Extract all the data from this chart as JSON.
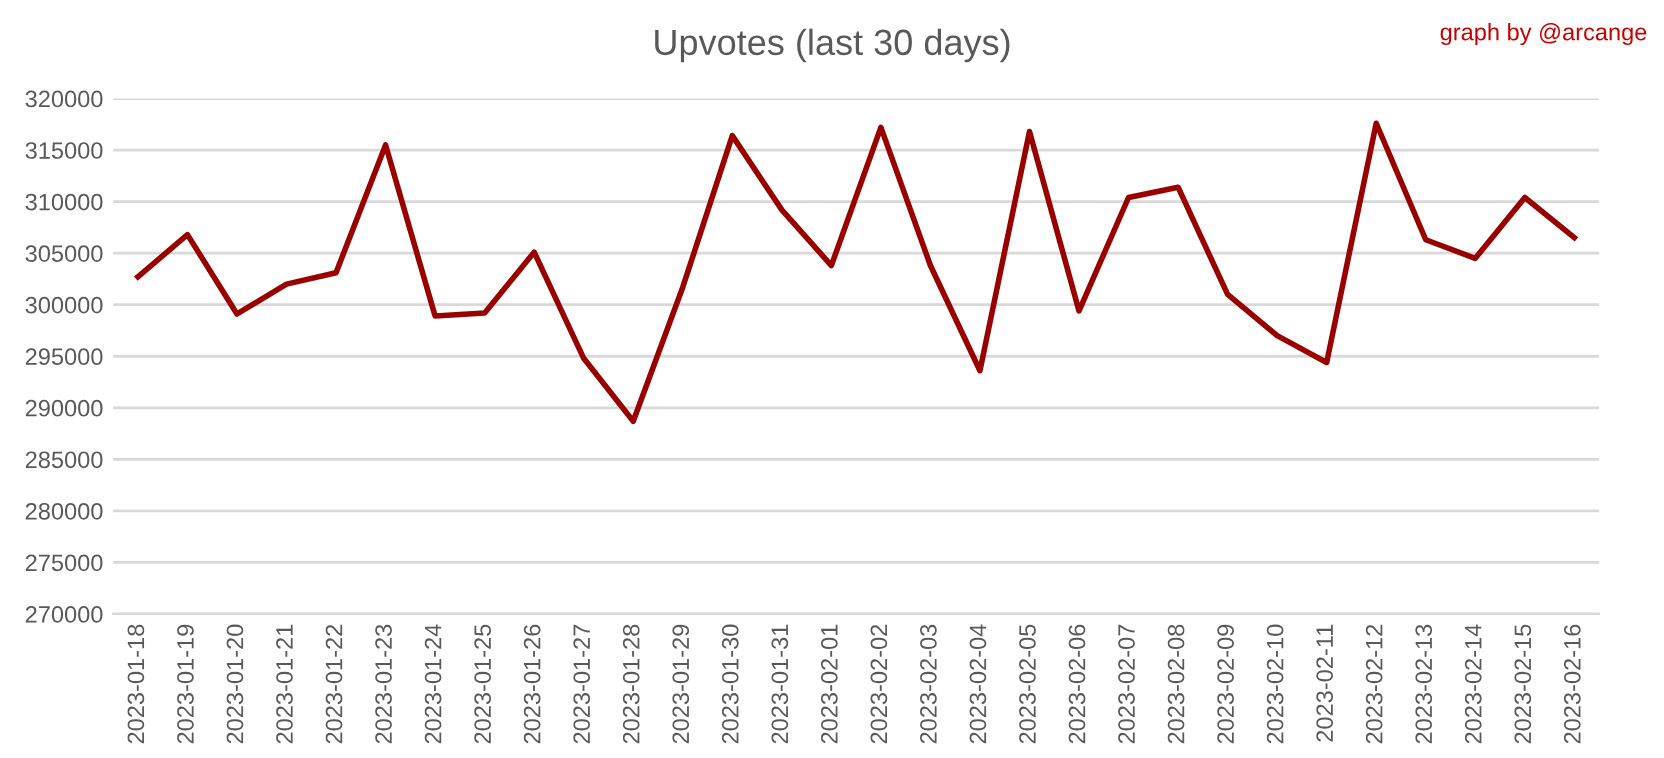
{
  "chart_data": {
    "type": "line",
    "title": "Upvotes (last 30 days)",
    "annotations": [
      "graph by @arcange"
    ],
    "categories": [
      "2023-01-18",
      "2023-01-19",
      "2023-01-20",
      "2023-01-21",
      "2023-01-22",
      "2023-01-23",
      "2023-01-24",
      "2023-01-25",
      "2023-01-26",
      "2023-01-27",
      "2023-01-28",
      "2023-01-29",
      "2023-01-30",
      "2023-01-31",
      "2023-02-01",
      "2023-02-02",
      "2023-02-03",
      "2023-02-04",
      "2023-02-05",
      "2023-02-06",
      "2023-02-07",
      "2023-02-08",
      "2023-02-09",
      "2023-02-10",
      "2023-02-11",
      "2023-02-12",
      "2023-02-13",
      "2023-02-14",
      "2023-02-15",
      "2023-02-16"
    ],
    "series": [
      {
        "color": "#990000",
        "values": [
          302700,
          306800,
          299100,
          302000,
          303100,
          315500,
          298900,
          299200,
          305100,
          294800,
          288700,
          301700,
          316400,
          309200,
          303800,
          317200,
          303800,
          293600,
          316800,
          299400,
          310400,
          311400,
          301000,
          297000,
          294400,
          317600,
          306300,
          304500,
          310400,
          306500
        ]
      }
    ],
    "ylim": [
      270000,
      320000
    ],
    "yticks": [
      270000,
      275000,
      280000,
      285000,
      290000,
      295000,
      300000,
      305000,
      310000,
      315000,
      320000
    ],
    "grid": "y",
    "legend": false,
    "marker": "none",
    "line_style": "solid"
  }
}
